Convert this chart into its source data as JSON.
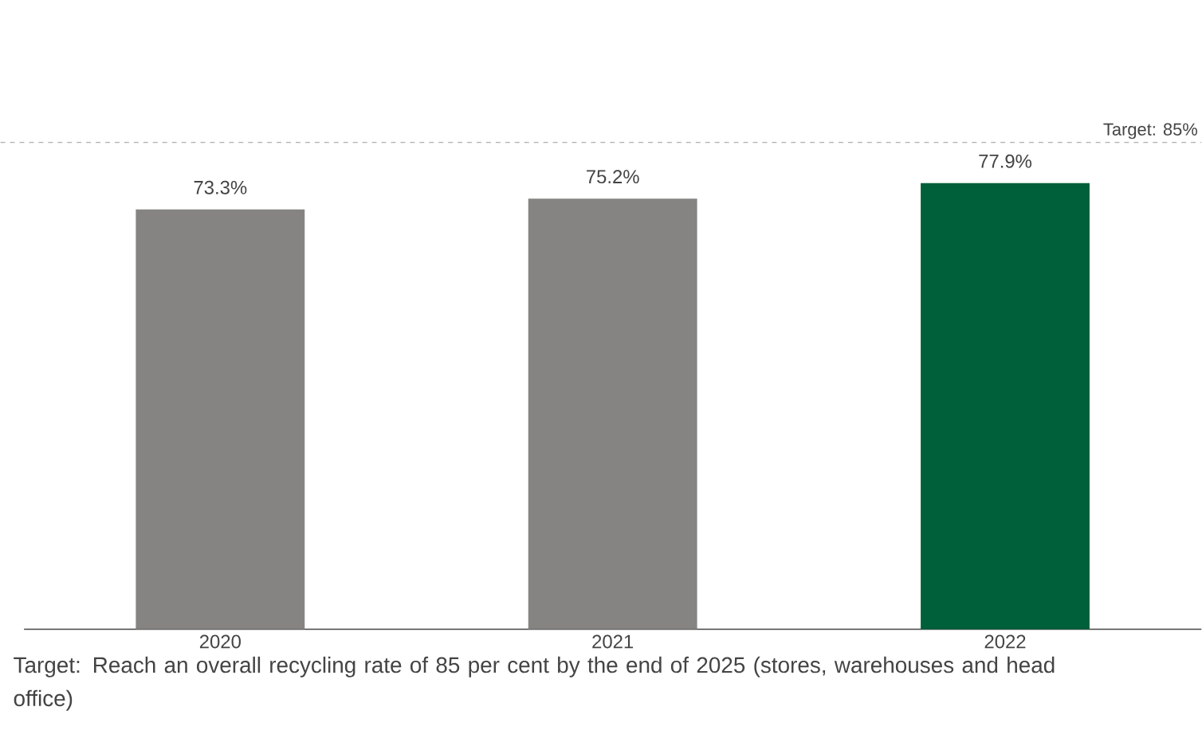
{
  "chart_data": {
    "type": "bar",
    "categories": [
      "2020",
      "2021",
      "2022"
    ],
    "values": [
      73.3,
      75.2,
      77.9
    ],
    "colors": [
      "#858482",
      "#858482",
      "#00603a"
    ],
    "value_labels": [
      "73.3%",
      "75.2%",
      "77.9%"
    ],
    "tick_labels": "x",
    "ref_lines": [
      {
        "axis": "y",
        "value": 85,
        "label": "Target: 85%",
        "color": "#9a9a9a",
        "line_style": "dashed"
      }
    ],
    "annotations": [
      "Target: Reach an overall recycling rate of 85 per cent by the end of 2025 (stores, warehouses and head office)"
    ]
  }
}
